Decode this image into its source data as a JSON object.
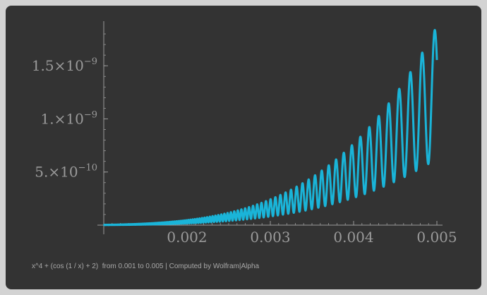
{
  "caption": "x^4 + (cos (1 / x) + 2)  from 0.001 to 0.005 | Computed by Wolfram|Alpha",
  "colors": {
    "background": "#333333",
    "frame": "#d3d3d3",
    "axis": "#9a9a9a",
    "series": "#1ab4d8"
  },
  "chart_data": {
    "type": "line",
    "title": "",
    "xlabel": "",
    "ylabel": "",
    "xlim": [
      0.001,
      0.005
    ],
    "ylim": [
      0,
      1.9e-09
    ],
    "grid": false,
    "function": "x^4 * (cos(1/x) + 2)",
    "x_ticks": [
      {
        "value": 0.002,
        "label": "0.002"
      },
      {
        "value": 0.003,
        "label": "0.003"
      },
      {
        "value": 0.004,
        "label": "0.004"
      },
      {
        "value": 0.005,
        "label": "0.005"
      }
    ],
    "y_ticks": [
      {
        "value": 5e-10,
        "mantissa": "5.",
        "exp": "−10"
      },
      {
        "value": 1e-09,
        "mantissa": "1.",
        "exp": "−9"
      },
      {
        "value": 1.5e-09,
        "mantissa": "1.5",
        "exp": "−9"
      }
    ],
    "series": [
      {
        "x": [
          0.001,
          0.0015,
          0.002,
          0.0025,
          0.003,
          0.0035,
          0.004,
          0.0045,
          0.005
        ],
        "y": [
          1.4e-12,
          8.3e-12,
          3e-11,
          1e-10,
          1.6e-10,
          4.3e-10,
          4.9e-10,
          1.2e-09,
          1.55e-09
        ]
      }
    ]
  }
}
